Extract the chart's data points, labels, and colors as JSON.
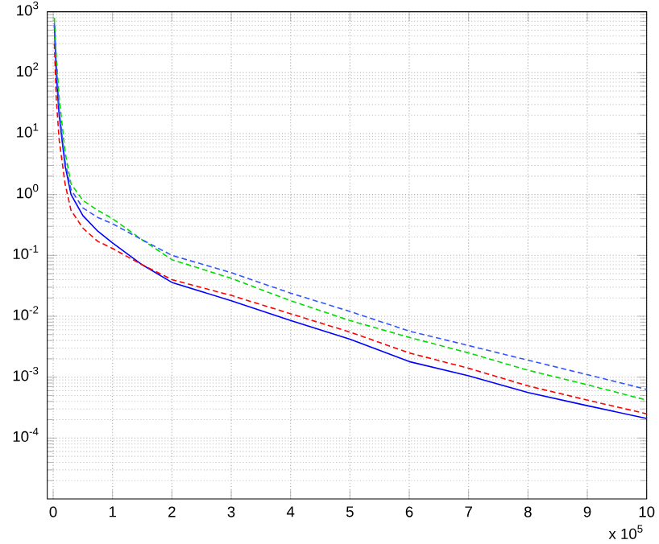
{
  "chart_data": {
    "type": "line",
    "log": "y",
    "grid": true,
    "x": [
      0.02,
      0.05,
      0.1,
      0.2,
      0.3,
      0.5,
      0.75,
      1,
      1.5,
      2,
      3,
      4,
      5,
      6,
      7,
      8,
      9,
      10
    ],
    "series": [
      {
        "color": "#0000ff",
        "line_style": "solid",
        "values": [
          600,
          100,
          20,
          3,
          1.0,
          0.45,
          0.25,
          0.16,
          0.07,
          0.036,
          0.018,
          0.0085,
          0.0042,
          0.0018,
          0.00105,
          0.00056,
          0.00034,
          0.00021
        ]
      },
      {
        "color": "#ff0000",
        "line_style": "dashed",
        "values": [
          300,
          40,
          8,
          1.5,
          0.55,
          0.28,
          0.17,
          0.13,
          0.07,
          0.04,
          0.022,
          0.011,
          0.0055,
          0.0025,
          0.0014,
          0.00072,
          0.00042,
          0.00025
        ]
      },
      {
        "color": "#00dd00",
        "line_style": "dashed",
        "values": [
          800,
          200,
          40,
          5,
          1.5,
          0.8,
          0.55,
          0.4,
          0.18,
          0.085,
          0.042,
          0.018,
          0.0085,
          0.0045,
          0.0025,
          0.0013,
          0.00075,
          0.00042
        ]
      },
      {
        "color": "#3355ff",
        "line_style": "dashed",
        "values": [
          650,
          150,
          25,
          3.5,
          1.2,
          0.6,
          0.42,
          0.33,
          0.18,
          0.1,
          0.052,
          0.024,
          0.012,
          0.0057,
          0.0033,
          0.0019,
          0.0011,
          0.00063
        ]
      }
    ],
    "xlim": [
      -0.1,
      10
    ],
    "xticks": [
      0,
      1,
      2,
      3,
      4,
      5,
      6,
      7,
      8,
      9,
      10
    ],
    "ylim": [
      1e-05,
      1000
    ],
    "yticks": [
      {
        "value": 0.0001,
        "label": "10$^{-4}$"
      },
      {
        "value": 0.001,
        "label": "10$^{-3}$"
      },
      {
        "value": 0.01,
        "label": "10$^{-2}$"
      },
      {
        "value": 0.1,
        "label": "10$^{-1}$"
      },
      {
        "value": 1,
        "label": "10$^{0}$"
      },
      {
        "value": 10,
        "label": "10$^{1}$"
      },
      {
        "value": 100,
        "label": "10$^{2}$"
      },
      {
        "value": 1000,
        "label": "10$^{3}$"
      }
    ],
    "annotations": [
      "x 10$^{5}$"
    ]
  }
}
